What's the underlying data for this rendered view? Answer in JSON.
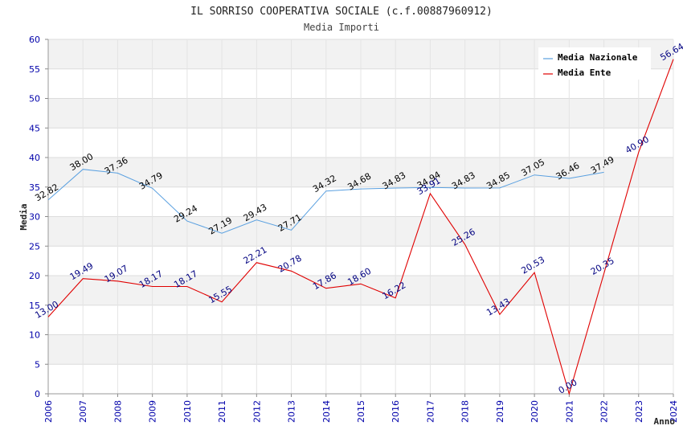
{
  "chart_data": {
    "type": "line",
    "title": "IL SORRISO COOPERATIVA SOCIALE (c.f.00887960912)",
    "subtitle": "Media Importi",
    "xlabel": "Anno",
    "ylabel": "Media",
    "ylim": [
      0,
      60
    ],
    "yticks": [
      "0",
      "5",
      "10",
      "15",
      "20",
      "25",
      "30",
      "35",
      "40",
      "45",
      "50",
      "55",
      "60"
    ],
    "categories": [
      "2006",
      "2007",
      "2008",
      "2009",
      "2010",
      "2011",
      "2012",
      "2013",
      "2014",
      "2015",
      "2016",
      "2017",
      "2018",
      "2019",
      "2020",
      "2021",
      "2022",
      "2023",
      "2024"
    ],
    "grid": true,
    "legend_position": "top-right",
    "series": [
      {
        "name": "Media Nazionale",
        "color": "#5aa0e0",
        "values": [
          32.82,
          38.0,
          37.36,
          34.79,
          29.24,
          27.19,
          29.43,
          27.71,
          34.32,
          34.68,
          34.83,
          34.94,
          34.83,
          34.85,
          37.05,
          36.46,
          37.49,
          null,
          null
        ],
        "labels": [
          "32.82",
          "38.00",
          "37.36",
          "34.79",
          "29.24",
          "27.19",
          "29.43",
          "27.71",
          "34.32",
          "34.68",
          "34.83",
          "34.94",
          "34.83",
          "34.85",
          "37.05",
          "36.46",
          "37.49",
          null,
          null
        ]
      },
      {
        "name": "Media Ente",
        "color": "#e00000",
        "values": [
          13.0,
          19.49,
          19.07,
          18.17,
          18.17,
          15.55,
          22.21,
          20.78,
          17.86,
          18.6,
          16.22,
          33.91,
          25.26,
          13.43,
          20.53,
          0.0,
          20.35,
          40.9,
          56.64
        ],
        "labels": [
          "13.00",
          "19.49",
          "19.07",
          "18.17",
          "18.17",
          "15.55",
          "22.21",
          "20.78",
          "17.86",
          "18.60",
          "16.22",
          "33.91",
          "25.26",
          "13.43",
          "20.53",
          "0.00",
          "20.35",
          "40.90",
          "56.64"
        ]
      }
    ]
  }
}
